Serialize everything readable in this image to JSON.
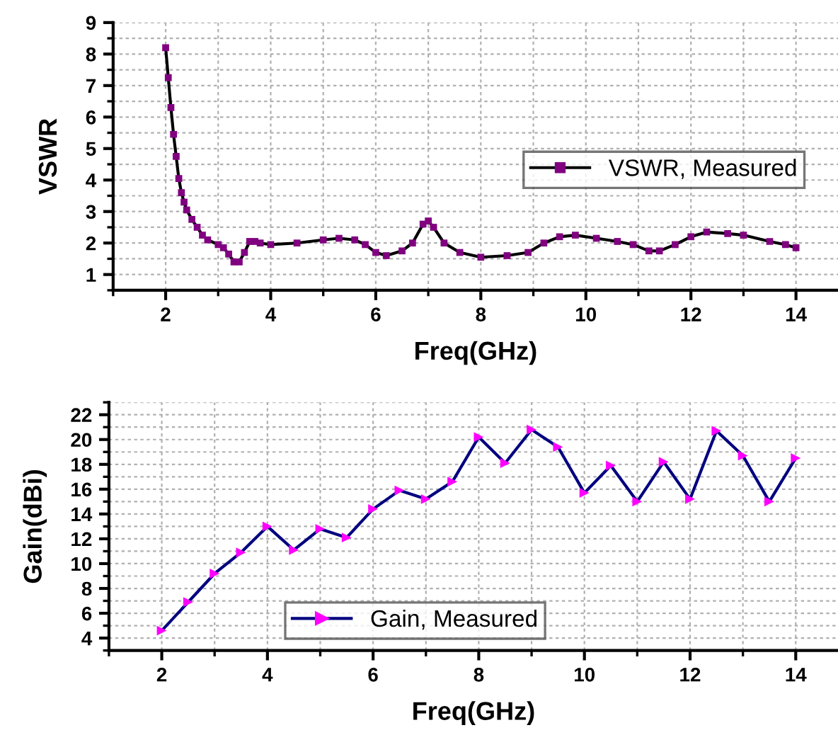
{
  "chart_data": [
    {
      "type": "line",
      "xlabel": "Freq(GHz)",
      "ylabel": "VSWR",
      "xlim": [
        1,
        14.8
      ],
      "xticks": [
        2,
        4,
        6,
        8,
        10,
        12,
        14
      ],
      "ylim": [
        0.5,
        9
      ],
      "yticks": [
        1,
        2,
        3,
        4,
        5,
        6,
        7,
        8,
        9
      ],
      "grid": true,
      "legend": "right",
      "marker": "square",
      "line_style": "solid",
      "series": [
        {
          "name": "VSWR, Measured",
          "color": "#000000",
          "x": [
            2.0,
            2.05,
            2.1,
            2.15,
            2.2,
            2.25,
            2.3,
            2.35,
            2.4,
            2.5,
            2.6,
            2.7,
            2.8,
            3.0,
            3.1,
            3.2,
            3.3,
            3.4,
            3.5,
            3.6,
            3.7,
            3.8,
            4.0,
            4.5,
            5.0,
            5.3,
            5.6,
            5.8,
            6.0,
            6.2,
            6.5,
            6.7,
            6.9,
            7.0,
            7.1,
            7.3,
            7.6,
            8.0,
            8.5,
            8.9,
            9.2,
            9.5,
            9.8,
            10.2,
            10.6,
            10.9,
            11.2,
            11.4,
            11.7,
            12.0,
            12.3,
            12.7,
            13.0,
            13.5,
            13.8,
            14.0
          ],
          "values": [
            8.2,
            7.25,
            6.3,
            5.45,
            4.75,
            4.05,
            3.6,
            3.3,
            3.05,
            2.75,
            2.5,
            2.25,
            2.1,
            1.95,
            1.85,
            1.65,
            1.4,
            1.4,
            1.7,
            2.05,
            2.05,
            2.0,
            1.95,
            2.0,
            2.1,
            2.15,
            2.1,
            1.95,
            1.7,
            1.6,
            1.75,
            2.0,
            2.6,
            2.7,
            2.5,
            2.0,
            1.7,
            1.55,
            1.6,
            1.7,
            2.0,
            2.2,
            2.25,
            2.15,
            2.05,
            1.95,
            1.75,
            1.75,
            1.95,
            2.2,
            2.35,
            2.3,
            2.25,
            2.05,
            1.95,
            1.85
          ],
          "colors": [
            "#800080",
            "#800080",
            "#800080",
            "#800080",
            "#800080",
            "#800080",
            "#800080",
            "#800080",
            "#800080",
            "#800080",
            "#800080",
            "#800080",
            "#800080",
            "#800080",
            "#800080",
            "#800080",
            "#800080",
            "#800080",
            "#800080",
            "#800080",
            "#800080",
            "#800080",
            "#800080",
            "#800080",
            "#800080",
            "#800080",
            "#800080",
            "#800080",
            "#800080",
            "#800080",
            "#800080",
            "#800080",
            "#800080",
            "#800080",
            "#800080",
            "#800080",
            "#800080",
            "#800080",
            "#800080",
            "#800080",
            "#800080",
            "#800080",
            "#800080",
            "#800080",
            "#800080",
            "#800080",
            "#800080",
            "#800080",
            "#800080",
            "#800080",
            "#800080",
            "#800080",
            "#800080",
            "#800080",
            "#800080",
            "#800080"
          ]
        }
      ]
    },
    {
      "type": "line",
      "xlabel": "Freq(GHz)",
      "ylabel": "Gain(dBi)",
      "xlim": [
        1,
        14.8
      ],
      "xticks": [
        2,
        4,
        6,
        8,
        10,
        12,
        14
      ],
      "ylim": [
        3,
        23
      ],
      "yticks": [
        4,
        6,
        8,
        10,
        12,
        14,
        16,
        18,
        20,
        22
      ],
      "grid": true,
      "legend": "bottom",
      "marker": "triangle",
      "line_style": "solid",
      "series": [
        {
          "name": "Gain, Measured",
          "color": "#000080",
          "x": [
            2,
            2.5,
            3,
            3.5,
            4,
            4.5,
            5,
            5.5,
            6,
            6.5,
            7,
            7.5,
            8,
            8.5,
            9,
            9.5,
            10,
            10.5,
            11,
            11.5,
            12,
            12.5,
            13,
            13.5,
            14
          ],
          "values": [
            4.6,
            6.9,
            9.2,
            10.9,
            13.0,
            11.1,
            12.8,
            12.1,
            14.4,
            15.9,
            15.2,
            16.6,
            20.2,
            18.1,
            20.8,
            19.4,
            15.7,
            17.9,
            15.0,
            18.2,
            15.2,
            20.7,
            18.7,
            15.0,
            18.5
          ],
          "colors": [
            "#ff00ff",
            "#ff00ff",
            "#ff00ff",
            "#ff00ff",
            "#ff00ff",
            "#ff00ff",
            "#ff00ff",
            "#ff00ff",
            "#ff00ff",
            "#ff00ff",
            "#ff00ff",
            "#ff00ff",
            "#ff00ff",
            "#ff00ff",
            "#ff00ff",
            "#ff00ff",
            "#ff00ff",
            "#ff00ff",
            "#ff00ff",
            "#ff00ff",
            "#ff00ff",
            "#ff00ff",
            "#ff00ff",
            "#ff00ff",
            "#ff00ff"
          ]
        }
      ]
    }
  ]
}
